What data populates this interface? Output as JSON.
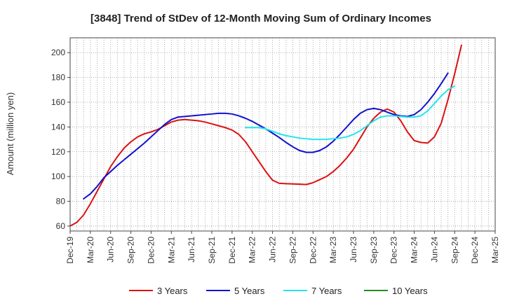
{
  "chart_data": {
    "type": "line",
    "title": "[3848]  Trend of StDev of 12-Month Moving Sum of Ordinary Incomes",
    "xlabel": "",
    "ylabel": "Amount (million yen)",
    "ylim": [
      56,
      212
    ],
    "yticks": [
      60,
      80,
      100,
      120,
      140,
      160,
      180,
      200
    ],
    "x_start": "2019-12",
    "x_end": "2025-03",
    "xticks": [
      "Dec-19",
      "Mar-20",
      "Jun-20",
      "Sep-20",
      "Dec-20",
      "Mar-21",
      "Jun-21",
      "Sep-21",
      "Dec-21",
      "Mar-22",
      "Jun-22",
      "Sep-22",
      "Dec-22",
      "Mar-23",
      "Jun-23",
      "Sep-23",
      "Dec-23",
      "Mar-24",
      "Jun-24",
      "Sep-24",
      "Dec-24",
      "Mar-25"
    ],
    "grid": true,
    "legend_position": "bottom",
    "series": [
      {
        "name": "3 Years",
        "color": "#dd1111",
        "start_month_index": 0,
        "values": [
          60,
          63,
          69,
          78,
          88,
          98,
          108,
          116,
          123,
          128,
          132,
          134.5,
          136,
          138,
          141,
          144,
          145.5,
          146,
          145.5,
          145,
          144,
          142.5,
          141,
          139.5,
          137.5,
          134,
          128,
          120,
          112,
          104,
          97,
          94.5,
          94.2,
          94,
          93.8,
          93.5,
          95,
          97.5,
          100,
          104,
          109,
          115,
          122,
          131,
          140,
          147,
          152,
          154.5,
          152,
          145,
          136,
          129,
          127.5,
          127,
          132,
          143,
          162,
          183,
          206
        ]
      },
      {
        "name": "5 Years",
        "color": "#1111cc",
        "start_month_index": 2,
        "values": [
          82,
          86,
          92,
          99,
          104,
          109,
          113.5,
          118,
          122.5,
          127,
          132,
          137,
          142,
          146,
          148,
          148.5,
          149,
          149.5,
          150,
          150.5,
          151,
          151,
          150.5,
          149,
          147,
          144.5,
          141.5,
          138.5,
          135,
          131.5,
          127.5,
          124,
          121,
          119.5,
          119.5,
          121,
          124,
          128.5,
          134,
          140,
          146,
          151,
          154,
          155,
          154,
          152,
          150,
          149,
          148.5,
          150,
          154,
          160,
          167,
          175,
          183.5
        ]
      },
      {
        "name": "7 Years",
        "color": "#22e5ee",
        "start_month_index": 26,
        "values": [
          139.5,
          139.5,
          139.5,
          138.5,
          136.5,
          134.5,
          133,
          132,
          131,
          130.5,
          130,
          130,
          130,
          130.5,
          131,
          132,
          134,
          137,
          141,
          145,
          148,
          149,
          149,
          148.5,
          148,
          148,
          149,
          153,
          159,
          165,
          170,
          173
        ]
      },
      {
        "name": "10 Years",
        "color": "#228b22",
        "start_month_index": 0,
        "values": []
      }
    ]
  }
}
